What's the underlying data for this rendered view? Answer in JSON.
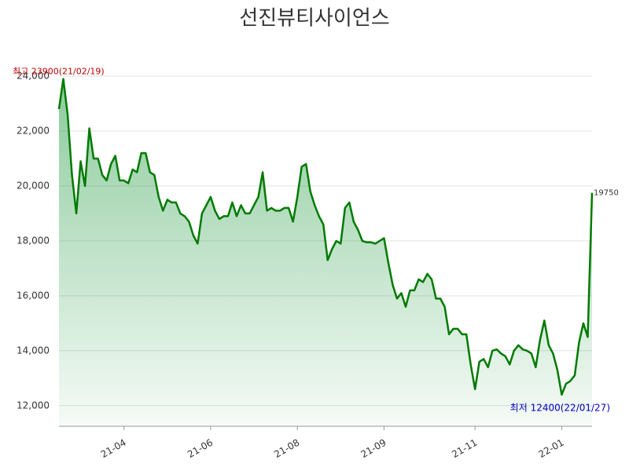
{
  "chart_data": {
    "type": "line",
    "title": "선진뷰티사이언스",
    "categories": [
      null,
      null,
      null,
      null,
      null,
      null,
      null,
      null,
      null,
      null,
      null,
      null,
      null,
      null,
      null,
      "21-04",
      null,
      null,
      null,
      null,
      null,
      null,
      null,
      null,
      null,
      null,
      null,
      null,
      null,
      null,
      null,
      null,
      null,
      null,
      null,
      "21-06",
      null,
      null,
      null,
      null,
      null,
      null,
      null,
      null,
      null,
      null,
      null,
      null,
      null,
      null,
      null,
      null,
      null,
      null,
      null,
      "21-08",
      null,
      null,
      null,
      null,
      null,
      null,
      null,
      null,
      null,
      null,
      null,
      null,
      null,
      null,
      null,
      null,
      null,
      null,
      null,
      "21-09",
      null,
      null,
      null,
      null,
      null,
      null,
      null,
      null,
      null,
      null,
      null,
      null,
      null,
      null,
      null,
      null,
      null,
      null,
      null,
      null,
      "21-11",
      null,
      null,
      null,
      null,
      null,
      null,
      null,
      null,
      null,
      null,
      null,
      null,
      null,
      null,
      null,
      null,
      null,
      null,
      null,
      "22-01",
      null,
      null,
      null,
      null,
      null,
      null,
      null
    ],
    "series": [
      {
        "name": "선진뷰티사이언스",
        "color": "#007a00",
        "values": [
          22800,
          23900,
          22600,
          20400,
          19000,
          20900,
          20000,
          22100,
          21000,
          21000,
          20400,
          20200,
          20800,
          21100,
          20200,
          20200,
          20100,
          20600,
          20500,
          21200,
          21200,
          20500,
          20400,
          19600,
          19100,
          19500,
          19400,
          19400,
          19000,
          18900,
          18700,
          18200,
          17900,
          19000,
          19300,
          19600,
          19100,
          18800,
          18900,
          18900,
          19400,
          18900,
          19300,
          19000,
          19000,
          19300,
          19600,
          20500,
          19100,
          19200,
          19100,
          19100,
          19200,
          19200,
          18700,
          19600,
          20700,
          20800,
          19800,
          19300,
          18900,
          18600,
          17300,
          17700,
          18000,
          17900,
          19200,
          19400,
          18700,
          18400,
          18000,
          17950,
          17950,
          17900,
          18000,
          18100,
          17200,
          16400,
          15900,
          16100,
          15600,
          16200,
          16200,
          16600,
          16500,
          16800,
          16600,
          15900,
          15900,
          15600,
          14600,
          14800,
          14800,
          14600,
          14600,
          13500,
          12600,
          13600,
          13700,
          13400,
          14000,
          14050,
          13900,
          13800,
          13500,
          14000,
          14200,
          14050,
          14000,
          13900,
          13400,
          14400,
          15100,
          14200,
          13900,
          13300,
          12400,
          12800,
          12900,
          13100,
          14300,
          15000,
          14500,
          19750
        ]
      }
    ],
    "annotations": [
      "최고 23900(21/02/19)",
      "최저 12400(22/01/27)"
    ],
    "ylim": [
      11250,
      24200
    ],
    "yticks": [
      {
        "value": 12000,
        "label": "12,000"
      },
      {
        "value": 14000,
        "label": "14,000"
      },
      {
        "value": 16000,
        "label": "16,000"
      },
      {
        "value": 18000,
        "label": "18,000"
      },
      {
        "value": 20000,
        "label": "20,000"
      },
      {
        "value": 22000,
        "label": "22,000"
      },
      {
        "value": 24000,
        "label": "24,000"
      }
    ],
    "grid": true
  }
}
